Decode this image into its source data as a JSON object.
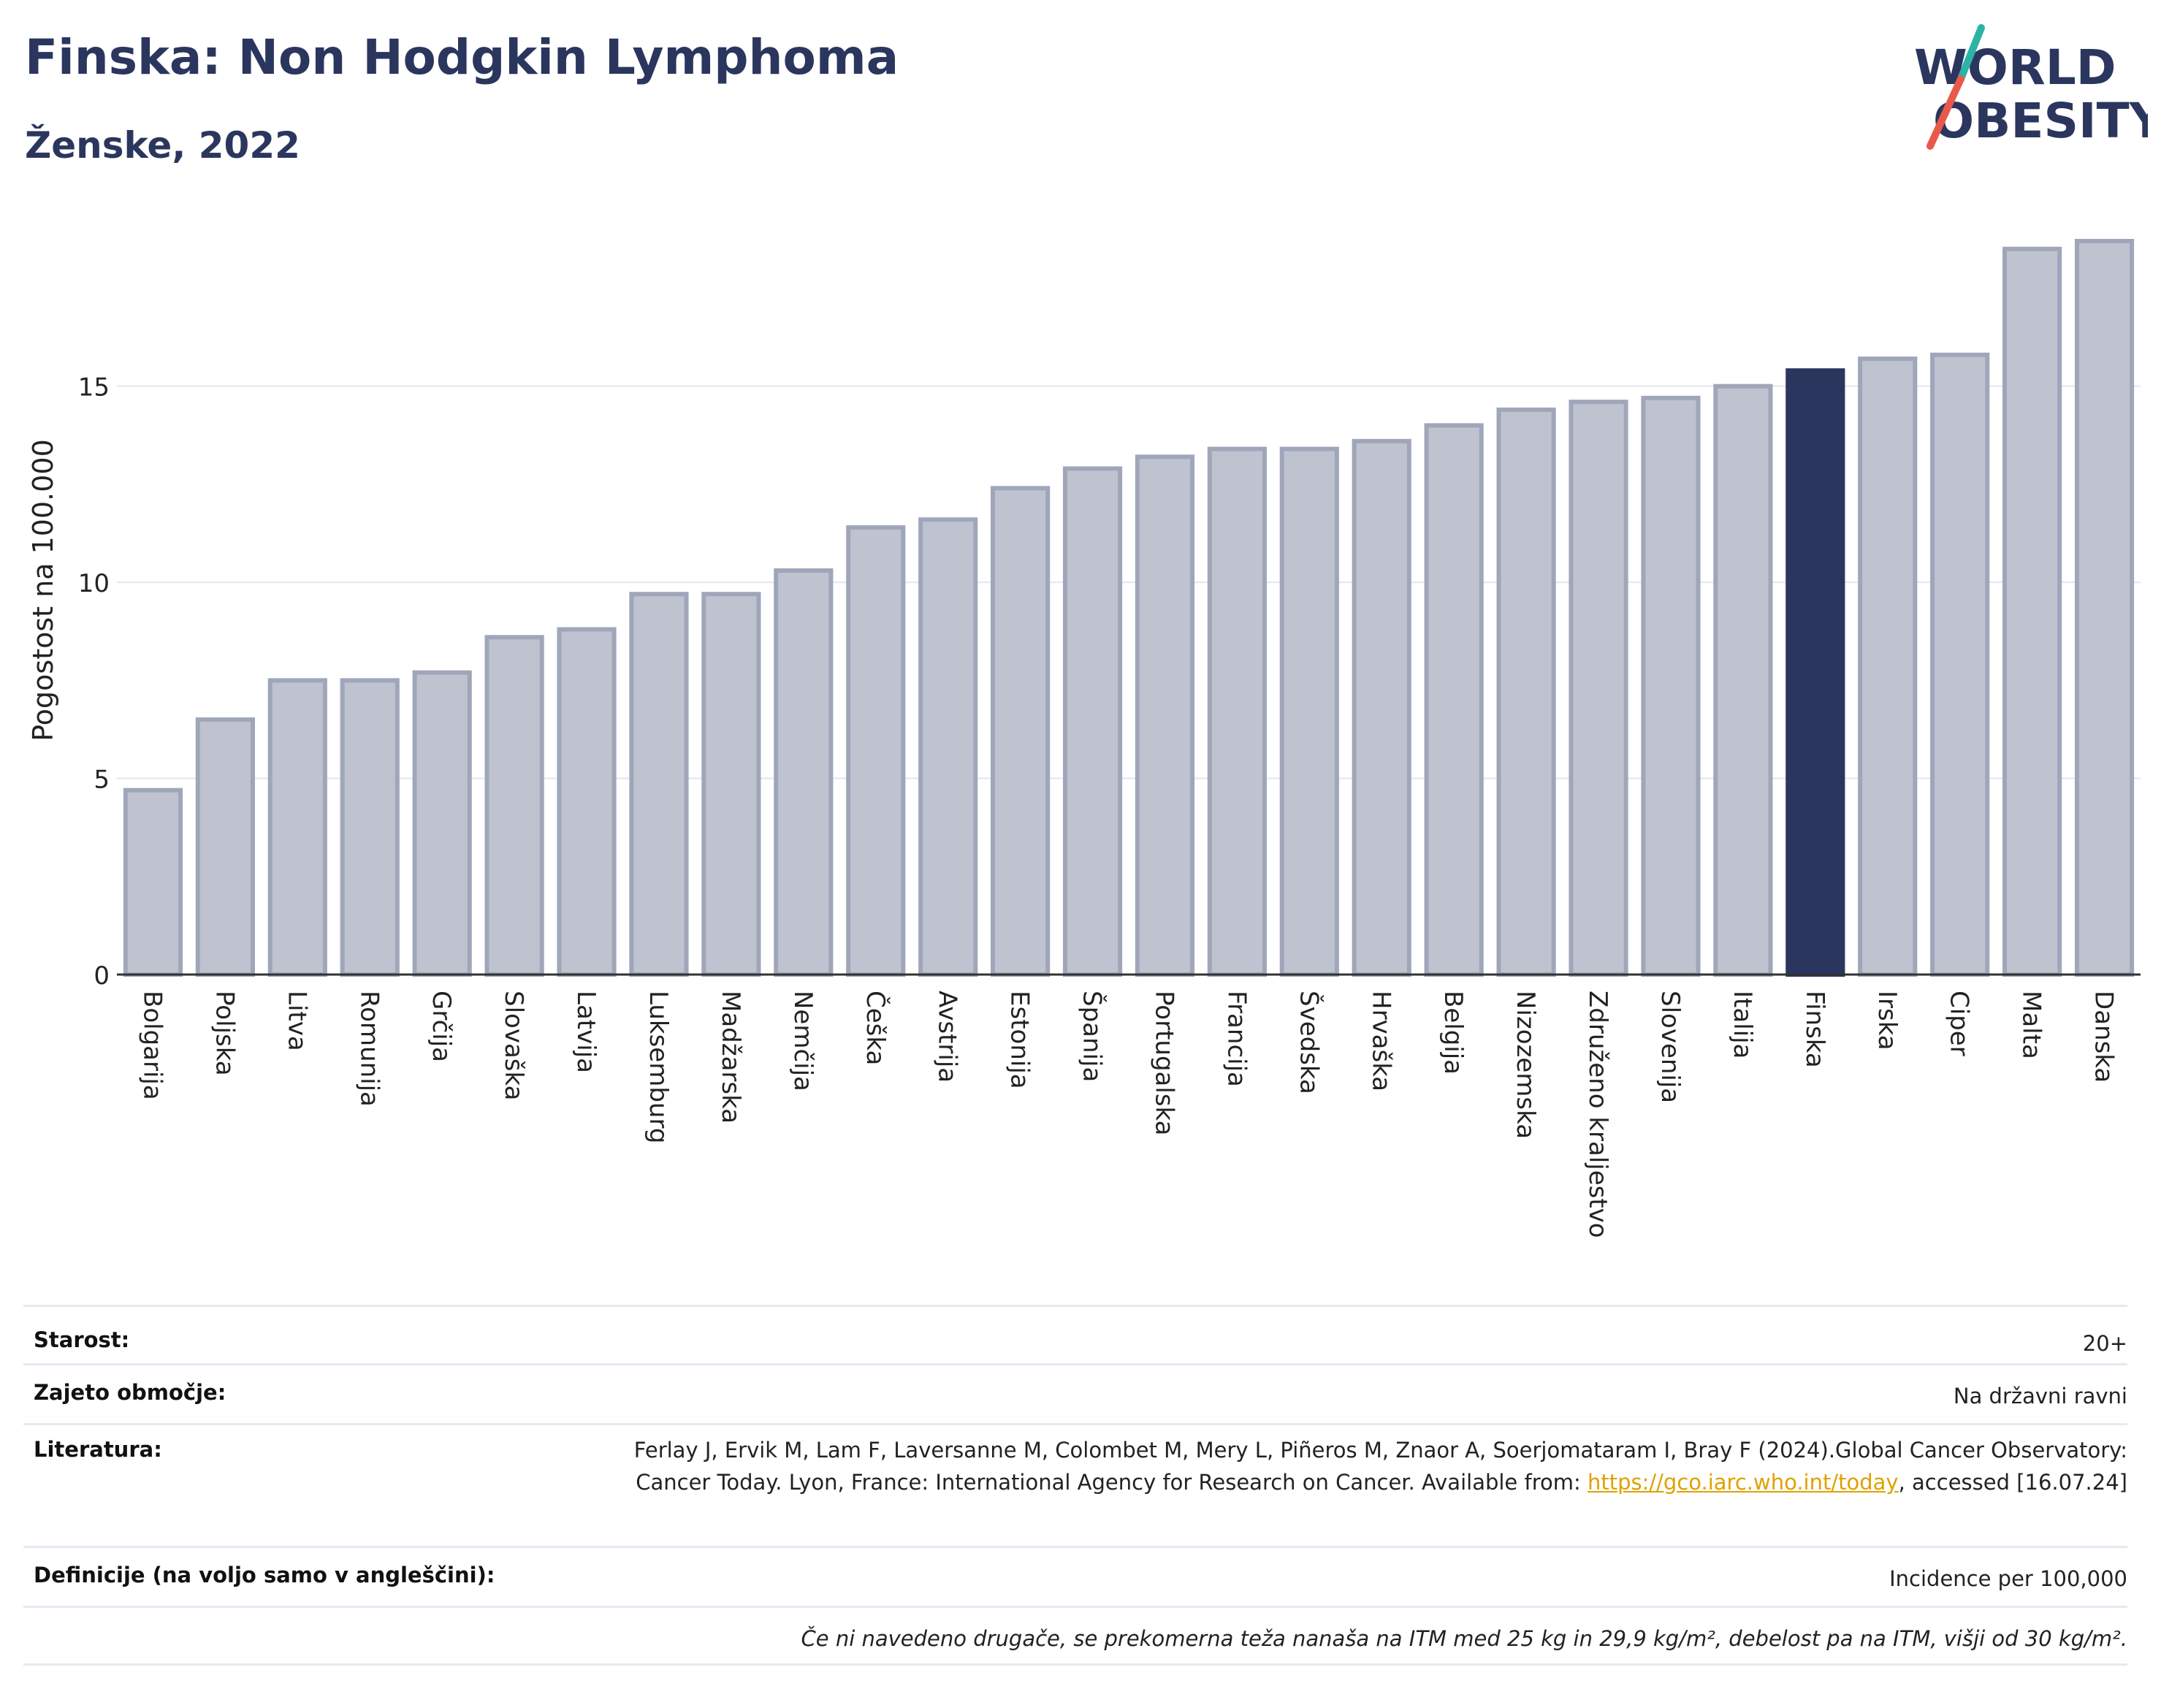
{
  "title": "Finska: Non Hodgkin Lymphoma",
  "subtitle": "Ženske, 2022",
  "logo": {
    "line1": "WORLD",
    "line2": "OBESITY",
    "colors": {
      "text": "#2b365e",
      "slash_teal": "#2bb3a6",
      "slash_red": "#e8594b"
    }
  },
  "chart_data": {
    "type": "bar",
    "title": "Finska: Non Hodgkin Lymphoma",
    "subtitle": "Ženske, 2022",
    "ylabel": "Pogostost na 100.000",
    "xlabel": "",
    "ylim": [
      0,
      19
    ],
    "yticks": [
      0,
      5,
      10,
      15
    ],
    "grid": true,
    "highlight": "Finska",
    "colors": {
      "bar": "#bfc3d0",
      "bar_border": "#a0a6ba",
      "highlight": "#2b365e"
    },
    "categories": [
      "Bolgarija",
      "Poljska",
      "Litva",
      "Romunija",
      "Grčija",
      "Slovaška",
      "Latvija",
      "Luksemburg",
      "Madžarska",
      "Nemčija",
      "Češka",
      "Avstrija",
      "Estonija",
      "Španija",
      "Portugalska",
      "Francija",
      "Švedska",
      "Hrvaška",
      "Belgija",
      "Nizozemska",
      "Združeno kraljestvo",
      "Slovenija",
      "Italija",
      "Finska",
      "Irska",
      "Ciper",
      "Malta",
      "Danska"
    ],
    "values": [
      4.7,
      6.5,
      7.5,
      7.5,
      7.7,
      8.6,
      8.8,
      9.7,
      9.7,
      10.3,
      11.4,
      11.6,
      12.4,
      12.9,
      13.2,
      13.4,
      13.4,
      13.6,
      14.0,
      14.4,
      14.6,
      14.7,
      15.0,
      15.4,
      15.7,
      15.8,
      18.5,
      18.7
    ]
  },
  "info": {
    "age_label": "Starost:",
    "age_value": "20+",
    "area_label": "Zajeto območje:",
    "area_value": "Na državni ravni",
    "lit_label": "Literatura:",
    "lit_text1": "Ferlay J, Ervik M, Lam F, Laversanne M, Colombet M, Mery L, Piñeros M, Znaor A, Soerjomataram I, Bray F (2024).Global Cancer Observatory: Cancer Today. Lyon, France: International Agency for Research on Cancer. Available from: ",
    "lit_link": "https://gco.iarc.who.int/today",
    "lit_text2": ", accessed [16.07.24]",
    "def_label": "Definicije (na voljo samo v angleščini):",
    "def_value": "Incidence per 100,000",
    "note": "Če ni navedeno drugače, se prekomerna teža nanaša na ITM med 25 kg in 29,9 kg/m², debelost pa na ITM, višji od 30 kg/m²."
  }
}
